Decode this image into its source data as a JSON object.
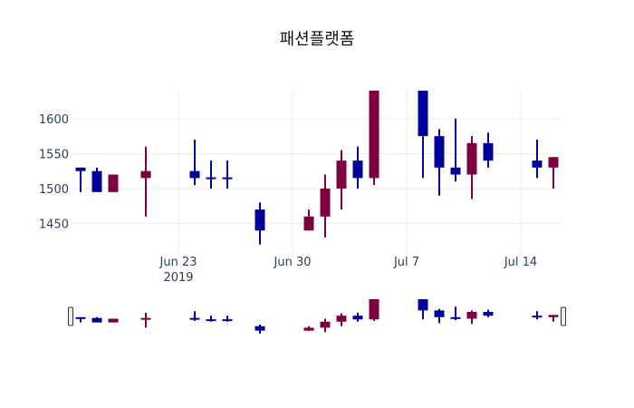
{
  "chart_data": {
    "type": "candlestick",
    "title": "패션플랫폼",
    "xlabel": "",
    "ylabel": "",
    "xlim": [
      "2019-06-16T12:00",
      "2019-07-16T12:00"
    ],
    "ylim": [
      1404,
      1640
    ],
    "grid": true,
    "rangeslider": true,
    "increasing_color": "#7f0040",
    "decreasing_color": "#00009b",
    "yticks": [
      1450,
      1500,
      1550,
      1600
    ],
    "xticks": [
      {
        "date": "2019-06-23",
        "label": "Jun 23",
        "sublabel": "2019"
      },
      {
        "date": "2019-06-30",
        "label": "Jun 30"
      },
      {
        "date": "2019-07-07",
        "label": "Jul 7"
      },
      {
        "date": "2019-07-14",
        "label": "Jul 14"
      }
    ],
    "candles": [
      {
        "date": "2019-06-17",
        "open": 1530,
        "high": 1530,
        "low": 1495,
        "close": 1525
      },
      {
        "date": "2019-06-18",
        "open": 1525,
        "high": 1530,
        "low": 1495,
        "close": 1495
      },
      {
        "date": "2019-06-19",
        "open": 1495,
        "high": 1520,
        "low": 1495,
        "close": 1520
      },
      {
        "date": "2019-06-21",
        "open": 1515,
        "high": 1560,
        "low": 1460,
        "close": 1525
      },
      {
        "date": "2019-06-24",
        "open": 1525,
        "high": 1570,
        "low": 1505,
        "close": 1515
      },
      {
        "date": "2019-06-25",
        "open": 1516,
        "high": 1540,
        "low": 1500,
        "close": 1514
      },
      {
        "date": "2019-06-26",
        "open": 1516,
        "high": 1540,
        "low": 1500,
        "close": 1514
      },
      {
        "date": "2019-06-28",
        "open": 1470,
        "high": 1480,
        "low": 1420,
        "close": 1440
      },
      {
        "date": "2019-07-01",
        "open": 1440,
        "high": 1470,
        "low": 1440,
        "close": 1460
      },
      {
        "date": "2019-07-02",
        "open": 1460,
        "high": 1520,
        "low": 1430,
        "close": 1500
      },
      {
        "date": "2019-07-03",
        "open": 1500,
        "high": 1555,
        "low": 1470,
        "close": 1540
      },
      {
        "date": "2019-07-04",
        "open": 1540,
        "high": 1560,
        "low": 1500,
        "close": 1515
      },
      {
        "date": "2019-07-05",
        "open": 1515,
        "high": 1650,
        "low": 1505,
        "close": 1650
      },
      {
        "date": "2019-07-08",
        "open": 1650,
        "high": 1650,
        "low": 1515,
        "close": 1575
      },
      {
        "date": "2019-07-09",
        "open": 1575,
        "high": 1585,
        "low": 1490,
        "close": 1530
      },
      {
        "date": "2019-07-10",
        "open": 1530,
        "high": 1600,
        "low": 1510,
        "close": 1520
      },
      {
        "date": "2019-07-11",
        "open": 1520,
        "high": 1575,
        "low": 1485,
        "close": 1565
      },
      {
        "date": "2019-07-12",
        "open": 1565,
        "high": 1580,
        "low": 1530,
        "close": 1540
      },
      {
        "date": "2019-07-15",
        "open": 1540,
        "high": 1570,
        "low": 1515,
        "close": 1530
      },
      {
        "date": "2019-07-16",
        "open": 1530,
        "high": 1545,
        "low": 1500,
        "close": 1545
      }
    ]
  }
}
